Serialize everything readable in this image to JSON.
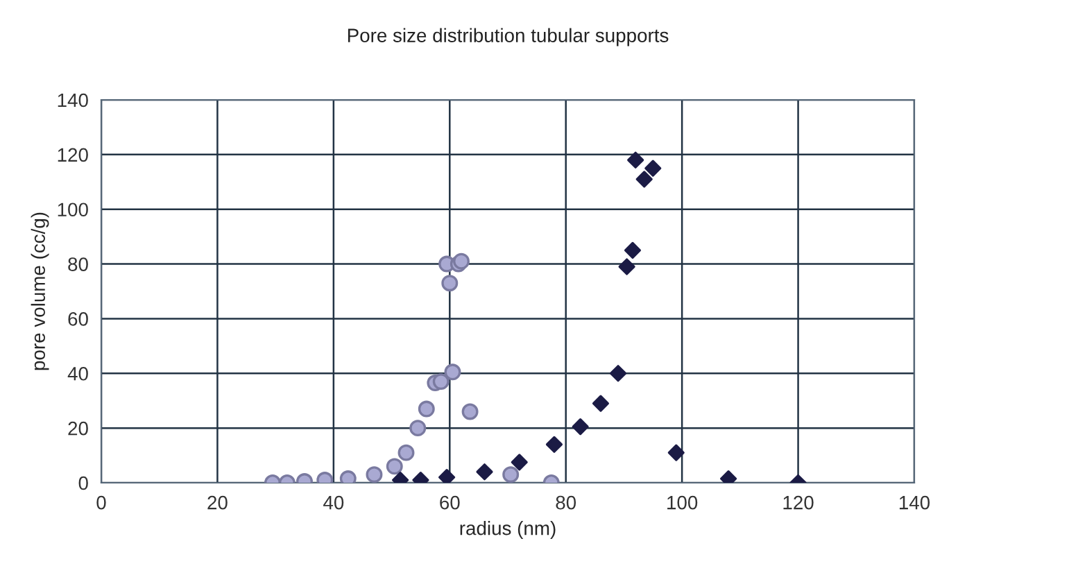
{
  "chart_data": {
    "type": "scatter",
    "title": "Pore size distribution tubular supports",
    "xlabel": "radius (nm)",
    "ylabel": "pore volume (cc/g)",
    "xlim": [
      0,
      140
    ],
    "xticks": [
      0,
      20,
      40,
      60,
      80,
      100,
      120,
      140
    ],
    "ylim": [
      0,
      140
    ],
    "yticks": [
      0,
      20,
      40,
      60,
      80,
      100,
      120,
      140
    ],
    "grid": true,
    "series": [
      {
        "color": "#a9a9d2",
        "marker": "circle",
        "x": [
          29.5,
          32,
          35,
          38.5,
          42.5,
          47,
          50.5,
          52.5,
          54.5,
          56,
          57.5,
          58.5,
          60.5,
          59.5,
          60,
          61.5,
          62,
          63.5,
          70.5,
          77.5
        ],
        "values": [
          0,
          0,
          0.5,
          1,
          1.5,
          3,
          6,
          11,
          20,
          27,
          36.5,
          37,
          40.5,
          80,
          73,
          80,
          81,
          26,
          3,
          0
        ]
      },
      {
        "color": "#1b1b45",
        "marker": "diamond",
        "x": [
          51.5,
          55,
          59.5,
          66,
          72,
          78,
          82.5,
          86,
          89,
          90.5,
          91.5,
          92,
          93.5,
          95,
          99,
          108,
          120
        ],
        "values": [
          1,
          1,
          2,
          4,
          7.5,
          14,
          20.5,
          29,
          40,
          79,
          85,
          118,
          111,
          115,
          11,
          1.5,
          0
        ]
      }
    ]
  }
}
